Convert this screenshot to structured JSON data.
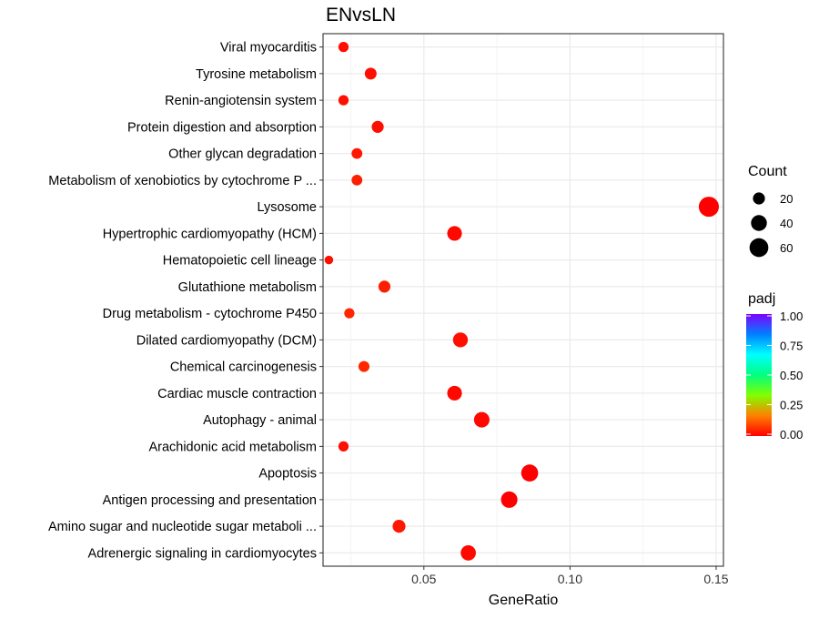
{
  "chart_data": {
    "type": "scatter",
    "title": "ENvsLN",
    "xlabel": "GeneRatio",
    "ylabel": "",
    "xlim": [
      0.0155,
      0.1525
    ],
    "x_ticks": [
      0.05,
      0.1,
      0.15
    ],
    "x_tick_labels": [
      "0.05",
      "0.10",
      "0.15"
    ],
    "grid": true,
    "legend_position": "right",
    "categories": [
      "Viral myocarditis",
      "Tyrosine metabolism",
      "Renin-angiotensin system",
      "Protein digestion and absorption",
      "Other glycan degradation",
      "Metabolism of xenobiotics by cytochrome P ...",
      "Lysosome",
      "Hypertrophic cardiomyopathy (HCM)",
      "Hematopoietic cell lineage",
      "Glutathione metabolism",
      "Drug metabolism - cytochrome P450",
      "Dilated cardiomyopathy (DCM)",
      "Chemical carcinogenesis",
      "Cardiac muscle contraction",
      "Autophagy - animal",
      "Arachidonic acid metabolism",
      "Apoptosis",
      "Antigen processing and presentation",
      "Amino sugar and nucleotide sugar metaboli ...",
      "Adrenergic signaling in cardiomyocytes"
    ],
    "points": [
      {
        "term": "Viral myocarditis",
        "gene_ratio": 0.0225,
        "count": 13,
        "padj": 0.02
      },
      {
        "term": "Tyrosine metabolism",
        "gene_ratio": 0.0318,
        "count": 19,
        "padj": 0.02
      },
      {
        "term": "Renin-angiotensin system",
        "gene_ratio": 0.0225,
        "count": 13,
        "padj": 0.02
      },
      {
        "term": "Protein digestion and absorption",
        "gene_ratio": 0.0342,
        "count": 20,
        "padj": 0.02
      },
      {
        "term": "Other glycan degradation",
        "gene_ratio": 0.0271,
        "count": 15,
        "padj": 0.03
      },
      {
        "term": "Metabolism of xenobiotics by cytochrome P ...",
        "gene_ratio": 0.0271,
        "count": 15,
        "padj": 0.04
      },
      {
        "term": "Lysosome",
        "gene_ratio": 0.1475,
        "count": 70,
        "padj": 0.0
      },
      {
        "term": "Hypertrophic cardiomyopathy (HCM)",
        "gene_ratio": 0.0605,
        "count": 33,
        "padj": 0.01
      },
      {
        "term": "Hematopoietic cell lineage",
        "gene_ratio": 0.0175,
        "count": 8,
        "padj": 0.02
      },
      {
        "term": "Glutathione metabolism",
        "gene_ratio": 0.0365,
        "count": 20,
        "padj": 0.04
      },
      {
        "term": "Drug metabolism - cytochrome P450",
        "gene_ratio": 0.0245,
        "count": 13,
        "padj": 0.05
      },
      {
        "term": "Dilated cardiomyopathy (DCM)",
        "gene_ratio": 0.0625,
        "count": 34,
        "padj": 0.02
      },
      {
        "term": "Chemical carcinogenesis",
        "gene_ratio": 0.0295,
        "count": 16,
        "padj": 0.05
      },
      {
        "term": "Cardiac muscle contraction",
        "gene_ratio": 0.0605,
        "count": 33,
        "padj": 0.01
      },
      {
        "term": "Autophagy - animal",
        "gene_ratio": 0.0698,
        "count": 38,
        "padj": 0.01
      },
      {
        "term": "Arachidonic acid metabolism",
        "gene_ratio": 0.0225,
        "count": 13,
        "padj": 0.02
      },
      {
        "term": "Apoptosis",
        "gene_ratio": 0.0862,
        "count": 47,
        "padj": 0.0
      },
      {
        "term": "Antigen processing and presentation",
        "gene_ratio": 0.0792,
        "count": 44,
        "padj": 0.0
      },
      {
        "term": "Amino sugar and nucleotide sugar metaboli ...",
        "gene_ratio": 0.0415,
        "count": 24,
        "padj": 0.03
      },
      {
        "term": "Adrenergic signaling in cardiomyocytes",
        "gene_ratio": 0.0652,
        "count": 36,
        "padj": 0.01
      }
    ],
    "size_legend": {
      "title": "Count",
      "values": [
        20,
        40,
        60
      ],
      "labels": [
        "20",
        "40",
        "60"
      ]
    },
    "color_legend": {
      "title": "padj",
      "ticks": [
        0.0,
        0.25,
        0.5,
        0.75,
        1.0
      ],
      "tick_labels": [
        "0.00",
        "0.25",
        "0.50",
        "0.75",
        "1.00"
      ],
      "colors": [
        "#ff0000",
        "#ff8000",
        "#80ff00",
        "#00ff80",
        "#00ffff",
        "#0080ff",
        "#8000ff"
      ]
    }
  }
}
